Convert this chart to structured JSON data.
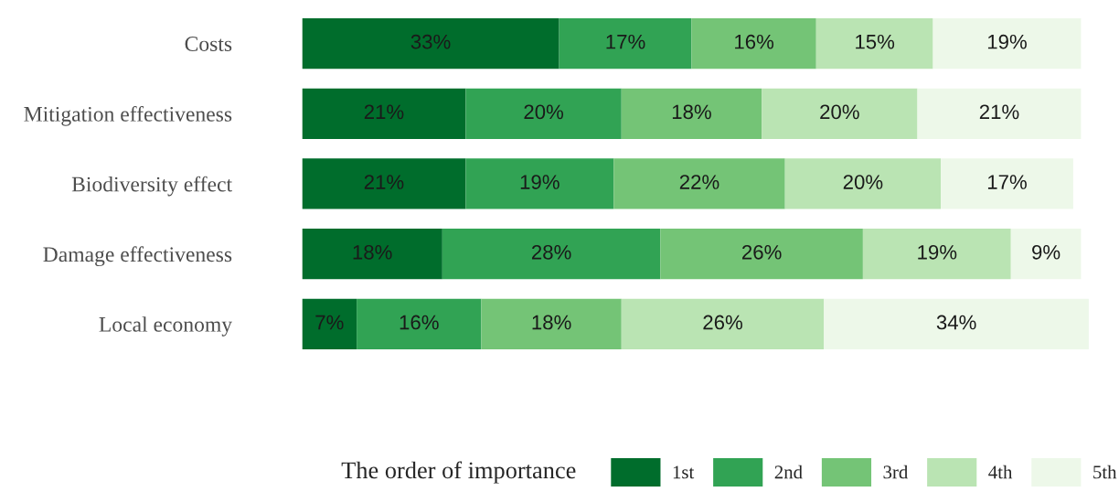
{
  "chart_data": {
    "type": "bar",
    "orientation": "horizontal",
    "stacked": true,
    "legend": "bottom",
    "legend_title": "The order of importance",
    "grid": false,
    "categories": [
      "Costs",
      "Mitigation effectiveness",
      "Biodiversity effect",
      "Damage effectiveness",
      "Local economy"
    ],
    "series": [
      {
        "name": "1st",
        "color": "#006d2c",
        "values": [
          33,
          21,
          21,
          18,
          7
        ],
        "value_labels": [
          "33%",
          "21%",
          "21%",
          "18%",
          "7%"
        ]
      },
      {
        "name": "2nd",
        "color": "#31a354",
        "values": [
          17,
          20,
          19,
          28,
          16
        ],
        "value_labels": [
          "17%",
          "20%",
          "19%",
          "28%",
          "16%"
        ]
      },
      {
        "name": "3rd",
        "color": "#74c476",
        "values": [
          16,
          18,
          22,
          26,
          18
        ],
        "value_labels": [
          "16%",
          "18%",
          "22%",
          "26%",
          "18%"
        ]
      },
      {
        "name": "4th",
        "color": "#bae4b3",
        "values": [
          15,
          20,
          20,
          19,
          26
        ],
        "value_labels": [
          "15%",
          "20%",
          "20%",
          "19%",
          "26%"
        ]
      },
      {
        "name": "5th",
        "color": "#edf8e9",
        "values": [
          19,
          21,
          17,
          9,
          34
        ],
        "value_labels": [
          "19%",
          "21%",
          "17%",
          "9%",
          "34%"
        ]
      }
    ]
  }
}
